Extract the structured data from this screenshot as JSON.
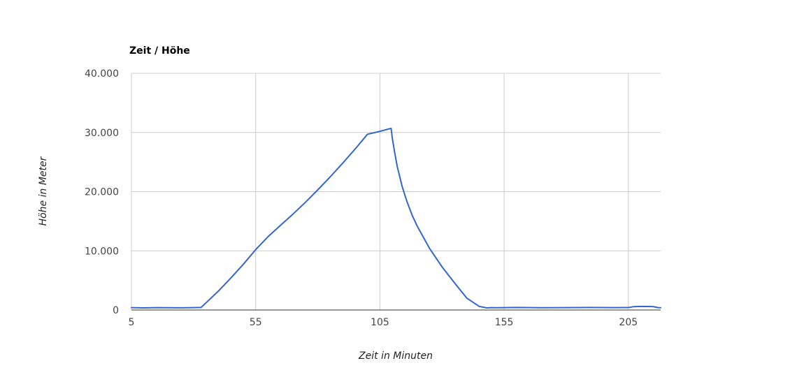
{
  "chart_data": {
    "type": "line",
    "title": "Zeit / Höhe",
    "xlabel": "Zeit in Minuten",
    "ylabel": "Höhe in Meter",
    "xlim": [
      5,
      218
    ],
    "ylim": [
      0,
      40000
    ],
    "x_ticks": [
      {
        "value": 5,
        "label": "5"
      },
      {
        "value": 55,
        "label": "55"
      },
      {
        "value": 105,
        "label": "105"
      },
      {
        "value": 155,
        "label": "155"
      },
      {
        "value": 205,
        "label": "205"
      }
    ],
    "y_ticks": [
      {
        "value": 0,
        "label": "0"
      },
      {
        "value": 10000,
        "label": "10.000"
      },
      {
        "value": 20000,
        "label": "20.000"
      },
      {
        "value": 30000,
        "label": "30.000"
      },
      {
        "value": 40000,
        "label": "40.000"
      }
    ],
    "grid": true,
    "legend": "none",
    "colors": {
      "series": "#3366cc",
      "grid": "#cccccc",
      "baseline": "#333333"
    },
    "series": [
      {
        "x": [
          5,
          10,
          15,
          20,
          25,
          30,
          33,
          35,
          40,
          45,
          50,
          55,
          60,
          65,
          70,
          75,
          80,
          85,
          90,
          95,
          100,
          105,
          109.5,
          110,
          111,
          112,
          114,
          116,
          118,
          120,
          125,
          130,
          135,
          140,
          145,
          148,
          150,
          152,
          155,
          160,
          170,
          180,
          190,
          200,
          205,
          207,
          210,
          215,
          217,
          218
        ],
        "y": [
          400,
          350,
          400,
          380,
          360,
          400,
          420,
          1200,
          3200,
          5400,
          7700,
          10200,
          12400,
          14300,
          16200,
          18200,
          20300,
          22500,
          24800,
          27200,
          29700,
          30200,
          30700,
          29000,
          26500,
          24200,
          20800,
          18200,
          16000,
          14200,
          10400,
          7300,
          4600,
          2000,
          600,
          350,
          400,
          380,
          400,
          420,
          380,
          400,
          420,
          400,
          410,
          550,
          600,
          580,
          400,
          380
        ]
      }
    ]
  }
}
